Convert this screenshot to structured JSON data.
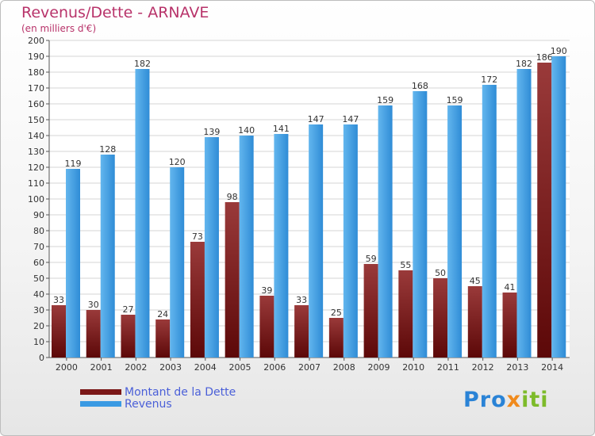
{
  "chart_data": {
    "type": "bar",
    "title": "Revenus/Dette - ARNAVE",
    "subtitle": "(en milliers d'€)",
    "categories": [
      "2000",
      "2001",
      "2002",
      "2003",
      "2004",
      "2005",
      "2006",
      "2007",
      "2008",
      "2009",
      "2010",
      "2011",
      "2012",
      "2013",
      "2014"
    ],
    "series": [
      {
        "name": "Montant de la Dette",
        "values": [
          33,
          30,
          27,
          24,
          73,
          98,
          39,
          33,
          25,
          59,
          55,
          50,
          45,
          41,
          186
        ],
        "color": "#7a1717"
      },
      {
        "name": "Revenus",
        "values": [
          119,
          128,
          182,
          120,
          139,
          140,
          141,
          147,
          147,
          159,
          168,
          159,
          172,
          182,
          190
        ],
        "color": "#3a9ae3"
      }
    ],
    "ylim": [
      0,
      200
    ],
    "ytick_step": 10,
    "grid": true,
    "legend_position": "bottom-left"
  },
  "brand": {
    "parts": [
      {
        "text": "Pro",
        "color": "#2a83d6"
      },
      {
        "text": "x",
        "color": "#f08a1c"
      },
      {
        "text": "iti",
        "color": "#7dbb2a"
      }
    ]
  }
}
